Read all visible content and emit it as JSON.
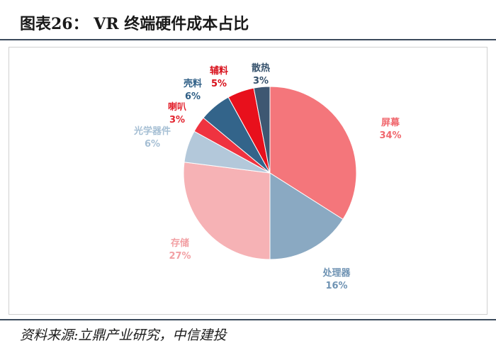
{
  "header": {
    "title": "图表26：  VR 终端硬件成本占比"
  },
  "footer": {
    "source": "资料来源:立鼎产业研究，中信建投"
  },
  "chart_data": {
    "type": "pie",
    "title": "",
    "legend": "none",
    "slices": [
      {
        "label": "屏幕",
        "value": 34,
        "value_label": "34%",
        "color": "#f4767b",
        "label_color": "#f0686e"
      },
      {
        "label": "处理器",
        "value": 16,
        "value_label": "16%",
        "color": "#8aa9c2",
        "label_color": "#6f93b3"
      },
      {
        "label": "存储",
        "value": 27,
        "value_label": "27%",
        "color": "#f6b2b5",
        "label_color": "#f2a0a4"
      },
      {
        "label": "光学器件",
        "value": 6,
        "value_label": "6%",
        "color": "#b3c8da",
        "label_color": "#a6bfd4"
      },
      {
        "label": "喇叭",
        "value": 3,
        "value_label": "3%",
        "color": "#ef3340",
        "label_color": "#e3242f"
      },
      {
        "label": "壳料",
        "value": 6,
        "value_label": "6%",
        "color": "#33648a",
        "label_color": "#2f5f86"
      },
      {
        "label": "辅料",
        "value": 5,
        "value_label": "5%",
        "color": "#e8101c",
        "label_color": "#d80f1a"
      },
      {
        "label": "散热",
        "value": 3,
        "value_label": "3%",
        "color": "#3e5772",
        "label_color": "#34506b"
      }
    ]
  }
}
